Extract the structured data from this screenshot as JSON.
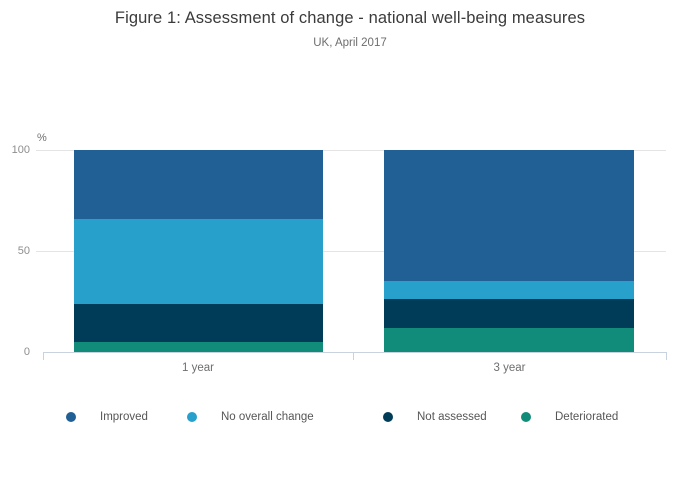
{
  "figure": {
    "title": "Figure 1: Assessment of change - national well-being measures",
    "subtitle": "UK, April 2017"
  },
  "chart_data": {
    "type": "bar",
    "stacked": true,
    "title": "Figure 1: Assessment of change - national well-being measures",
    "subtitle": "UK, April 2017",
    "ylabel": "%",
    "xlabel": "",
    "ylim": [
      0,
      100
    ],
    "yticks": [
      0,
      50,
      100
    ],
    "grid": true,
    "legend_position": "bottom",
    "categories": [
      "1 year",
      "3 year"
    ],
    "series": [
      {
        "name": "Improved",
        "color": "#206095",
        "values": [
          34,
          65
        ]
      },
      {
        "name": "No overall change",
        "color": "#27A0CC",
        "values": [
          42,
          9
        ]
      },
      {
        "name": "Not assessed",
        "color": "#003C57",
        "values": [
          19,
          14
        ]
      },
      {
        "name": "Deteriorated",
        "color": "#118C7B",
        "values": [
          5,
          12
        ]
      }
    ]
  }
}
